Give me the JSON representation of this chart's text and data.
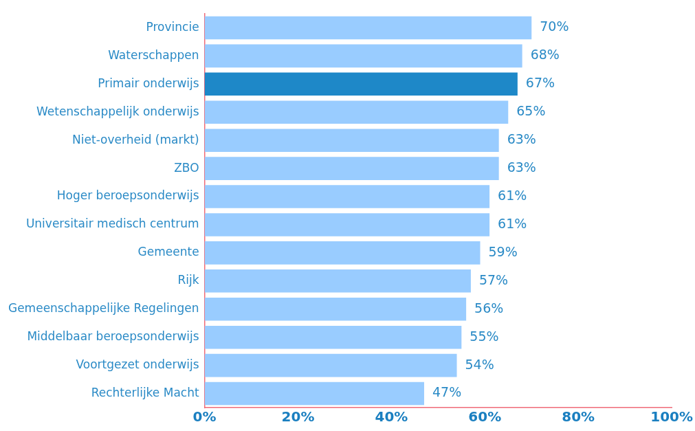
{
  "chart_data": {
    "type": "bar",
    "orientation": "horizontal",
    "categories": [
      "Provincie",
      "Waterschappen",
      "Primair onderwijs",
      "Wetenschappelijk onderwijs",
      "Niet-overheid (markt)",
      "ZBO",
      "Hoger beroepsonderwijs",
      "Universitair medisch centrum",
      "Gemeente",
      "Rijk",
      "Gemeenschappelijke Regelingen",
      "Middelbaar beroepsonderwijs",
      "Voortgezet onderwijs",
      "Rechterlijke Macht"
    ],
    "values": [
      70,
      68,
      67,
      65,
      63,
      63,
      61,
      61,
      59,
      57,
      56,
      55,
      54,
      47
    ],
    "colors": [
      "#99ccff",
      "#99ccff",
      "#1e88c8",
      "#99ccff",
      "#99ccff",
      "#99ccff",
      "#99ccff",
      "#99ccff",
      "#99ccff",
      "#99ccff",
      "#99ccff",
      "#99ccff",
      "#99ccff",
      "#99ccff"
    ],
    "value_labels": [
      "70%",
      "68%",
      "67%",
      "65%",
      "63%",
      "63%",
      "61%",
      "61%",
      "59%",
      "57%",
      "56%",
      "55%",
      "54%",
      "47%"
    ],
    "xlim": [
      0,
      100
    ],
    "xticks": [
      {
        "value": 0,
        "label": "0%"
      },
      {
        "value": 20,
        "label": "20%"
      },
      {
        "value": 40,
        "label": "40%"
      },
      {
        "value": 60,
        "label": "60%"
      },
      {
        "value": 80,
        "label": "80%"
      },
      {
        "value": 100,
        "label": "100%"
      }
    ],
    "grid": false,
    "legend": false
  }
}
